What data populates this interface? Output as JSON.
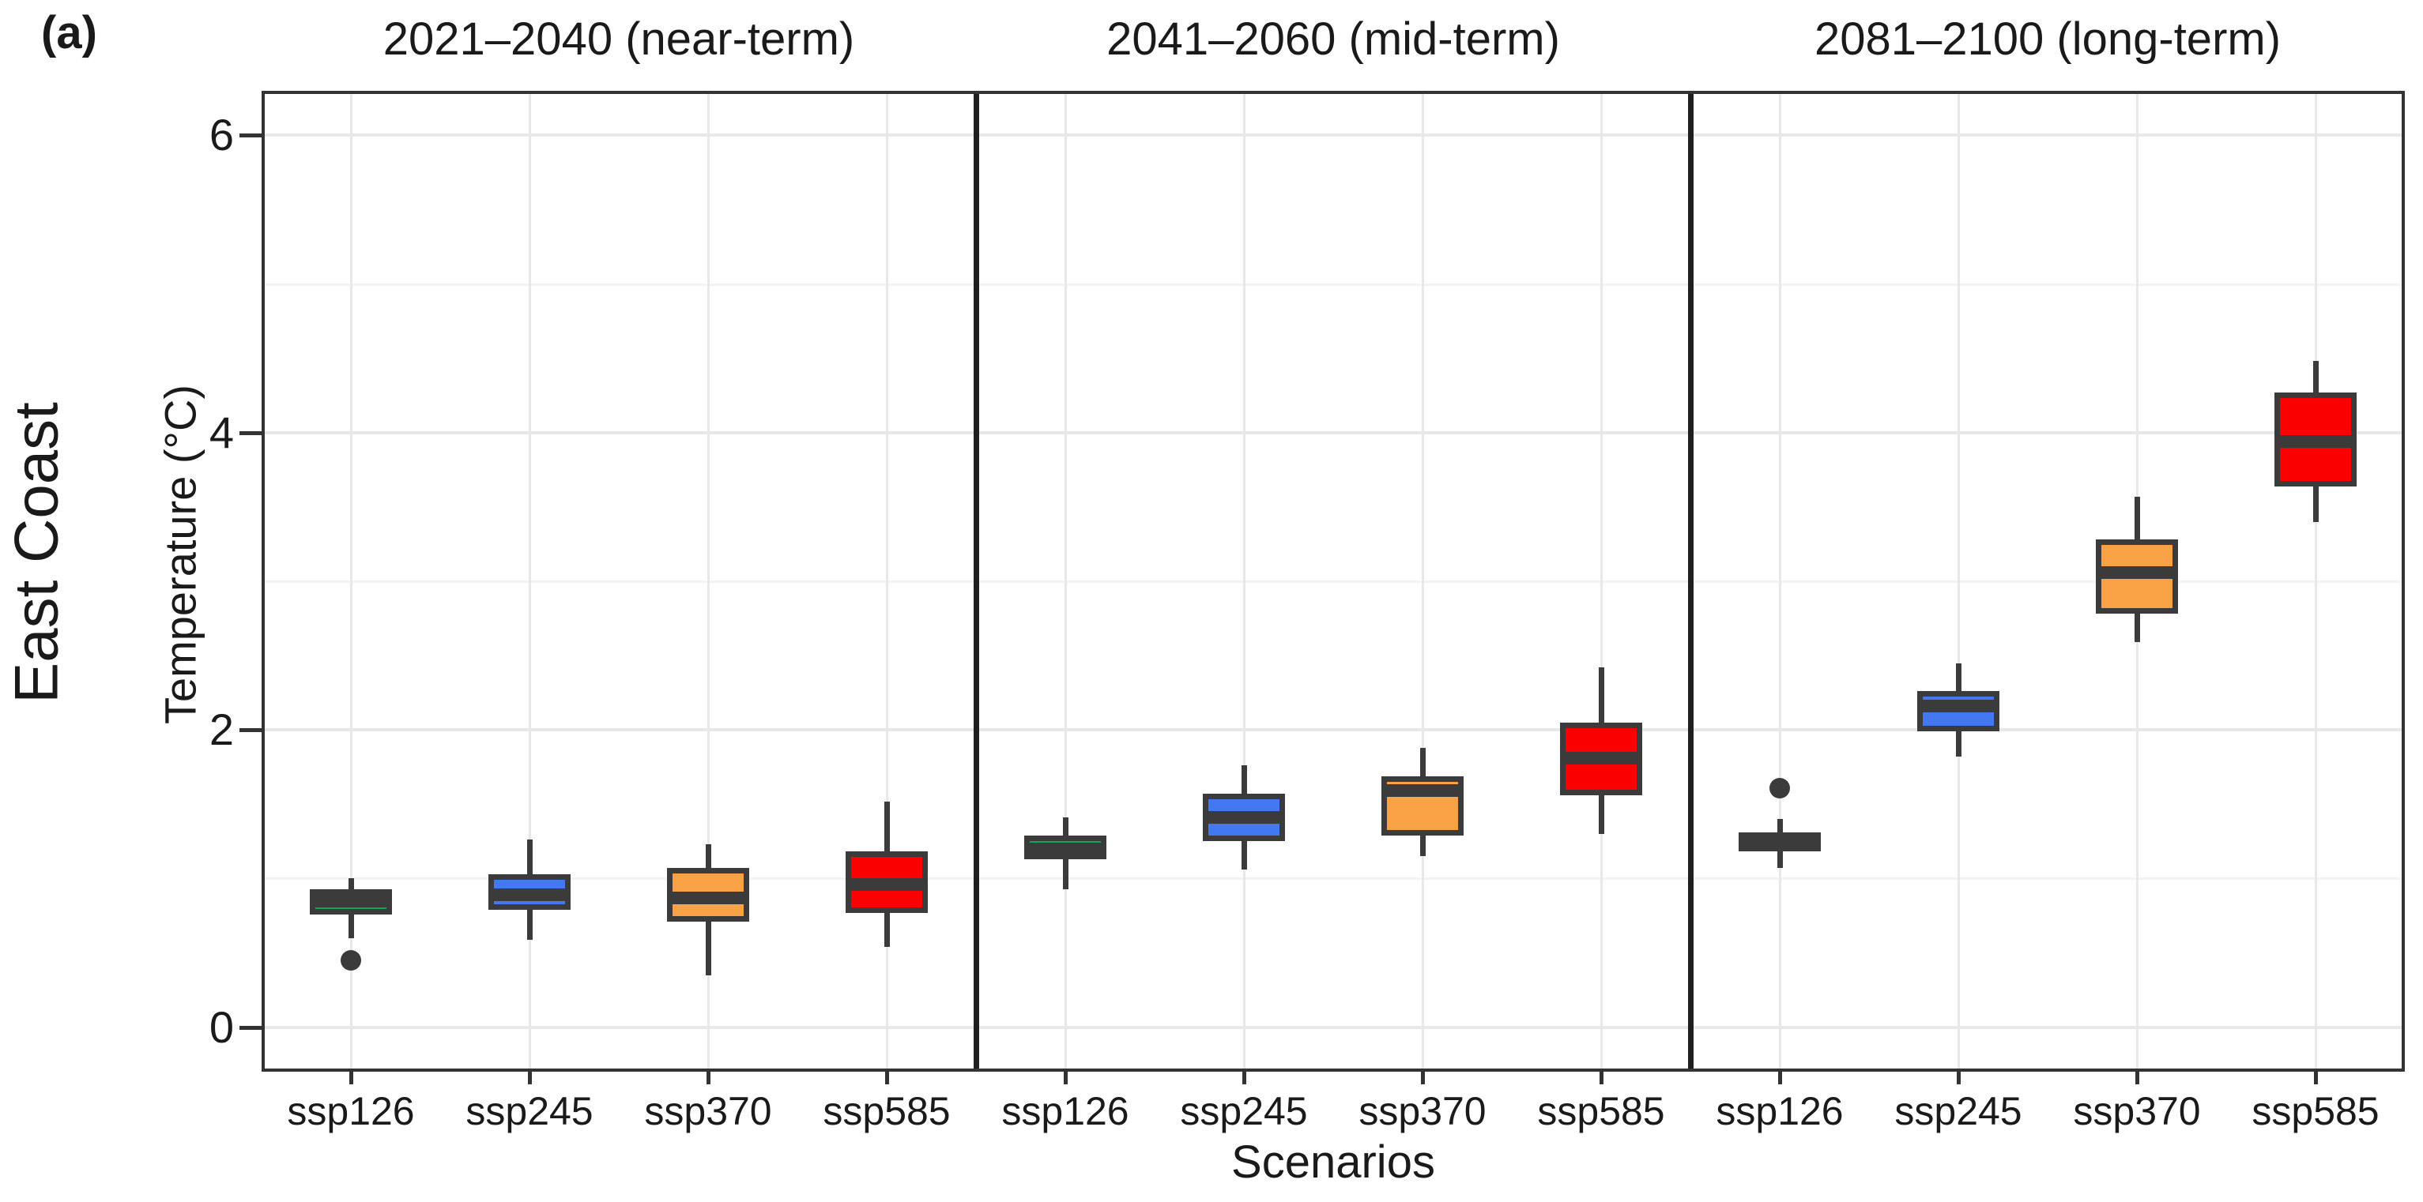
{
  "figure_label": "(a)",
  "colors": {
    "box_border": "#3b3b3b",
    "grid_major": "#e8e8e8",
    "grid_minor": "#f3f3f3",
    "panel_border": "#333333",
    "separator": "#1f1f1f",
    "text": "#1a1a1a"
  },
  "chart_data": {
    "type": "boxplot",
    "row_label": "East Coast",
    "ylabel": "Temperature (°C)",
    "xlabel": "Scenarios",
    "ylim": [
      -0.3,
      6.3
    ],
    "y_major_ticks": [
      0,
      2,
      4,
      6
    ],
    "y_minor_gridlines": [
      1,
      3,
      5
    ],
    "grid": true,
    "categories": [
      "ssp126",
      "ssp245",
      "ssp370",
      "ssp585"
    ],
    "category_colors": {
      "ssp126": "#12a452",
      "ssp245": "#4478f0",
      "ssp370": "#f8a245",
      "ssp585": "#fb0000"
    },
    "facets": [
      {
        "label": "2021–2040 (near-term)",
        "boxes": [
          {
            "scenario": "ssp126",
            "whisker_low": 0.6,
            "q1": 0.76,
            "median": 0.85,
            "q3": 0.93,
            "whisker_high": 1.0,
            "outliers": [
              0.45
            ]
          },
          {
            "scenario": "ssp245",
            "whisker_low": 0.59,
            "q1": 0.79,
            "median": 0.89,
            "q3": 1.03,
            "whisker_high": 1.26,
            "outliers": []
          },
          {
            "scenario": "ssp370",
            "whisker_low": 0.35,
            "q1": 0.71,
            "median": 0.87,
            "q3": 1.07,
            "whisker_high": 1.23,
            "outliers": []
          },
          {
            "scenario": "ssp585",
            "whisker_low": 0.54,
            "q1": 0.77,
            "median": 0.96,
            "q3": 1.18,
            "whisker_high": 1.52,
            "outliers": []
          }
        ]
      },
      {
        "label": "2041–2060 (mid-term)",
        "boxes": [
          {
            "scenario": "ssp126",
            "whisker_low": 0.93,
            "q1": 1.13,
            "median": 1.2,
            "q3": 1.29,
            "whisker_high": 1.41,
            "outliers": []
          },
          {
            "scenario": "ssp245",
            "whisker_low": 1.06,
            "q1": 1.25,
            "median": 1.41,
            "q3": 1.57,
            "whisker_high": 1.76,
            "outliers": []
          },
          {
            "scenario": "ssp370",
            "whisker_low": 1.15,
            "q1": 1.29,
            "median": 1.59,
            "q3": 1.69,
            "whisker_high": 1.88,
            "outliers": []
          },
          {
            "scenario": "ssp585",
            "whisker_low": 1.3,
            "q1": 1.56,
            "median": 1.81,
            "q3": 2.05,
            "whisker_high": 2.42,
            "outliers": []
          }
        ]
      },
      {
        "label": "2081–2100 (long-term)",
        "boxes": [
          {
            "scenario": "ssp126",
            "whisker_low": 1.07,
            "q1": 1.18,
            "median": 1.26,
            "q3": 1.31,
            "whisker_high": 1.4,
            "outliers": [
              1.61
            ]
          },
          {
            "scenario": "ssp245",
            "whisker_low": 1.82,
            "q1": 1.99,
            "median": 2.16,
            "q3": 2.26,
            "whisker_high": 2.45,
            "outliers": []
          },
          {
            "scenario": "ssp370",
            "whisker_low": 2.59,
            "q1": 2.78,
            "median": 3.06,
            "q3": 3.28,
            "whisker_high": 3.57,
            "outliers": []
          },
          {
            "scenario": "ssp585",
            "whisker_low": 3.4,
            "q1": 3.64,
            "median": 3.94,
            "q3": 4.27,
            "whisker_high": 4.48,
            "outliers": []
          }
        ]
      }
    ]
  }
}
